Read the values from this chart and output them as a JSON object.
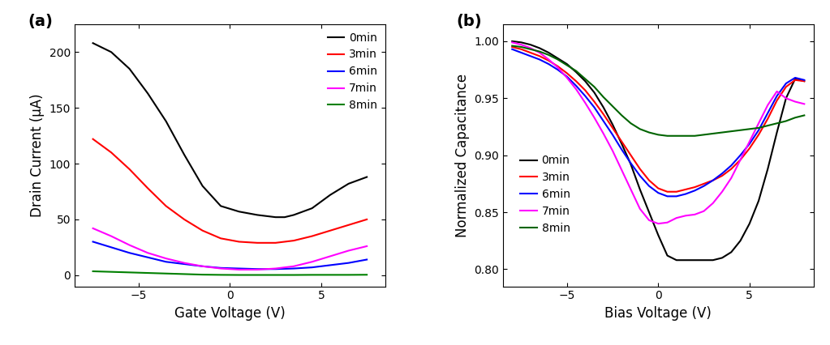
{
  "panel_a": {
    "title": "(a)",
    "xlabel": "Gate Voltage (V)",
    "ylabel": "Drain Current (μA)",
    "xlim": [
      -8.5,
      8.5
    ],
    "ylim": [
      -10,
      225
    ],
    "yticks": [
      0,
      50,
      100,
      150,
      200
    ],
    "xticks": [
      -5,
      0,
      5
    ],
    "series": [
      {
        "label": "0min",
        "color": "#000000",
        "x": [
          -7.5,
          -6.5,
          -5.5,
          -4.5,
          -3.5,
          -2.5,
          -1.5,
          -0.5,
          0.5,
          1.5,
          2.0,
          2.5,
          3.0,
          3.5,
          4.5,
          5.5,
          6.5,
          7.5
        ],
        "y": [
          208,
          200,
          185,
          163,
          138,
          108,
          80,
          62,
          57,
          54,
          53,
          52,
          52,
          54,
          60,
          72,
          82,
          88
        ]
      },
      {
        "label": "3min",
        "color": "#ff0000",
        "x": [
          -7.5,
          -6.5,
          -5.5,
          -4.5,
          -3.5,
          -2.5,
          -1.5,
          -0.5,
          0.5,
          1.5,
          2.5,
          3.0,
          3.5,
          4.5,
          5.5,
          6.5,
          7.5
        ],
        "y": [
          122,
          110,
          95,
          78,
          62,
          50,
          40,
          33,
          30,
          29,
          29,
          30,
          31,
          35,
          40,
          45,
          50
        ]
      },
      {
        "label": "6min",
        "color": "#0000ff",
        "x": [
          -7.5,
          -6.5,
          -5.5,
          -4.5,
          -3.5,
          -2.5,
          -1.5,
          -0.5,
          0.5,
          1.5,
          2.5,
          3.5,
          4.5,
          5.5,
          6.5,
          7.5
        ],
        "y": [
          30,
          25,
          20,
          16,
          12,
          10,
          8,
          6.5,
          6,
          5.5,
          5.5,
          6,
          7,
          9,
          11,
          14
        ]
      },
      {
        "label": "7min",
        "color": "#ff00ff",
        "x": [
          -7.5,
          -6.5,
          -5.5,
          -4.5,
          -3.5,
          -2.5,
          -1.5,
          -0.5,
          0.5,
          1.5,
          2.5,
          3.5,
          4.5,
          5.5,
          6.5,
          7.5
        ],
        "y": [
          42,
          35,
          27,
          20,
          15,
          11,
          8,
          6,
          5,
          5,
          6,
          8,
          12,
          17,
          22,
          26
        ]
      },
      {
        "label": "8min",
        "color": "#008000",
        "x": [
          -7.5,
          -6.5,
          -5.5,
          -4.5,
          -3.5,
          -2.5,
          -1.5,
          -0.5,
          0.5,
          1.5,
          2.5,
          3.5,
          4.5,
          5.5,
          6.5,
          7.5
        ],
        "y": [
          3.5,
          3.0,
          2.5,
          2.0,
          1.5,
          1.0,
          0.5,
          0.3,
          0.2,
          0.2,
          0.2,
          0.2,
          0.3,
          0.3,
          0.3,
          0.4
        ]
      }
    ]
  },
  "panel_b": {
    "title": "(b)",
    "xlabel": "Bias Voltage (V)",
    "ylabel": "Normalized Capacitance",
    "xlim": [
      -8.5,
      8.5
    ],
    "ylim": [
      0.785,
      1.015
    ],
    "yticks": [
      0.8,
      0.85,
      0.9,
      0.95,
      1.0
    ],
    "xticks": [
      -5,
      0,
      5
    ],
    "series": [
      {
        "label": "0min",
        "color": "#000000",
        "x": [
          -8.0,
          -7.5,
          -7.0,
          -6.5,
          -6.0,
          -5.5,
          -5.0,
          -4.5,
          -4.0,
          -3.5,
          -3.0,
          -2.5,
          -2.0,
          -1.5,
          -1.0,
          -0.5,
          0.0,
          0.5,
          1.0,
          1.5,
          2.0,
          2.5,
          3.0,
          3.5,
          4.0,
          4.5,
          5.0,
          5.5,
          6.0,
          6.5,
          7.0,
          7.5,
          8.0
        ],
        "y": [
          1.0,
          0.999,
          0.997,
          0.994,
          0.99,
          0.985,
          0.98,
          0.973,
          0.965,
          0.955,
          0.942,
          0.927,
          0.91,
          0.892,
          0.87,
          0.85,
          0.83,
          0.812,
          0.808,
          0.808,
          0.808,
          0.808,
          0.808,
          0.81,
          0.815,
          0.825,
          0.84,
          0.86,
          0.888,
          0.92,
          0.95,
          0.967,
          0.965
        ]
      },
      {
        "label": "3min",
        "color": "#ff0000",
        "x": [
          -8.0,
          -7.5,
          -7.0,
          -6.5,
          -6.0,
          -5.5,
          -5.0,
          -4.5,
          -4.0,
          -3.5,
          -3.0,
          -2.5,
          -2.0,
          -1.5,
          -1.0,
          -0.5,
          0.0,
          0.5,
          1.0,
          1.5,
          2.0,
          2.5,
          3.0,
          3.5,
          4.0,
          4.5,
          5.0,
          5.5,
          6.0,
          6.5,
          7.0,
          7.5,
          8.0
        ],
        "y": [
          0.995,
          0.993,
          0.99,
          0.987,
          0.983,
          0.978,
          0.972,
          0.965,
          0.957,
          0.947,
          0.936,
          0.924,
          0.912,
          0.9,
          0.888,
          0.878,
          0.871,
          0.868,
          0.868,
          0.87,
          0.872,
          0.875,
          0.878,
          0.882,
          0.888,
          0.896,
          0.906,
          0.918,
          0.932,
          0.948,
          0.96,
          0.966,
          0.965
        ]
      },
      {
        "label": "6min",
        "color": "#0000ff",
        "x": [
          -8.0,
          -7.5,
          -7.0,
          -6.5,
          -6.0,
          -5.5,
          -5.0,
          -4.5,
          -4.0,
          -3.5,
          -3.0,
          -2.5,
          -2.0,
          -1.5,
          -1.0,
          -0.5,
          0.0,
          0.5,
          1.0,
          1.5,
          2.0,
          2.5,
          3.0,
          3.5,
          4.0,
          4.5,
          5.0,
          5.5,
          6.0,
          6.5,
          7.0,
          7.5,
          8.0
        ],
        "y": [
          0.993,
          0.99,
          0.987,
          0.984,
          0.98,
          0.975,
          0.969,
          0.961,
          0.952,
          0.942,
          0.93,
          0.918,
          0.905,
          0.893,
          0.882,
          0.873,
          0.867,
          0.864,
          0.864,
          0.866,
          0.869,
          0.873,
          0.878,
          0.884,
          0.891,
          0.9,
          0.91,
          0.922,
          0.937,
          0.952,
          0.963,
          0.968,
          0.966
        ]
      },
      {
        "label": "7min",
        "color": "#ff00ff",
        "x": [
          -8.0,
          -7.5,
          -7.0,
          -6.5,
          -6.0,
          -5.5,
          -5.0,
          -4.5,
          -4.0,
          -3.5,
          -3.0,
          -2.5,
          -2.0,
          -1.5,
          -1.0,
          -0.5,
          0.0,
          0.5,
          1.0,
          1.5,
          2.0,
          2.5,
          3.0,
          3.5,
          4.0,
          4.5,
          5.0,
          5.5,
          6.0,
          6.5,
          7.0,
          7.5,
          8.0
        ],
        "y": [
          0.999,
          0.997,
          0.994,
          0.99,
          0.984,
          0.977,
          0.968,
          0.958,
          0.946,
          0.933,
          0.919,
          0.904,
          0.887,
          0.87,
          0.853,
          0.843,
          0.84,
          0.841,
          0.845,
          0.847,
          0.848,
          0.851,
          0.858,
          0.868,
          0.88,
          0.896,
          0.912,
          0.928,
          0.944,
          0.956,
          0.95,
          0.947,
          0.945
        ]
      },
      {
        "label": "8min",
        "color": "#006400",
        "x": [
          -8.0,
          -7.5,
          -7.0,
          -6.5,
          -6.0,
          -5.5,
          -5.0,
          -4.5,
          -4.0,
          -3.5,
          -3.0,
          -2.5,
          -2.0,
          -1.5,
          -1.0,
          -0.5,
          0.0,
          0.5,
          1.0,
          1.5,
          2.0,
          2.5,
          3.0,
          3.5,
          4.0,
          4.5,
          5.0,
          5.5,
          6.0,
          6.5,
          7.0,
          7.5,
          8.0
        ],
        "y": [
          0.996,
          0.995,
          0.993,
          0.991,
          0.988,
          0.984,
          0.979,
          0.974,
          0.967,
          0.96,
          0.951,
          0.943,
          0.935,
          0.928,
          0.923,
          0.92,
          0.918,
          0.917,
          0.917,
          0.917,
          0.917,
          0.918,
          0.919,
          0.92,
          0.921,
          0.922,
          0.923,
          0.924,
          0.926,
          0.928,
          0.93,
          0.933,
          0.935
        ]
      }
    ]
  },
  "fig_width": 10.23,
  "fig_height": 4.26,
  "label_fontsize": 12,
  "tick_fontsize": 10,
  "legend_fontsize": 10,
  "panel_label_fontsize": 14,
  "line_width": 1.5
}
